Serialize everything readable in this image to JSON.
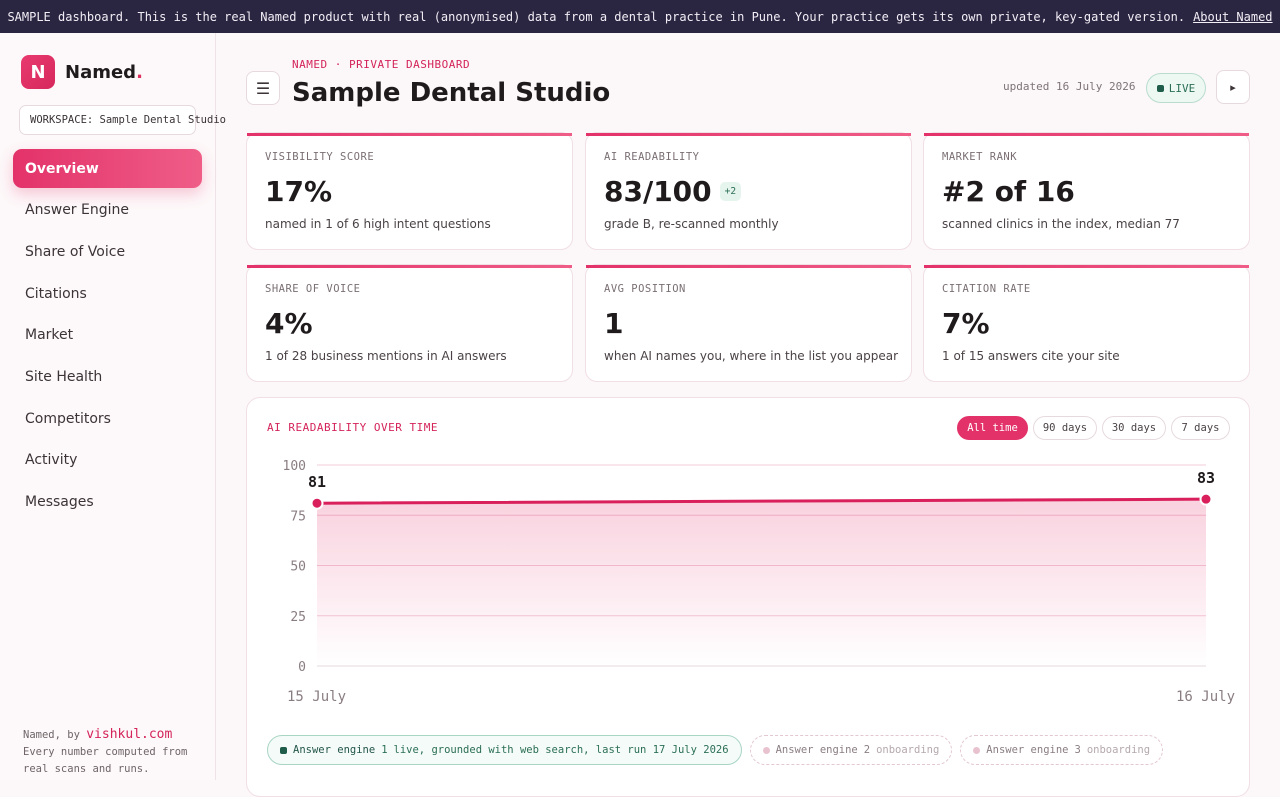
{
  "banner": {
    "text": "SAMPLE dashboard. This is the real Named product with real (anonymised) data from a dental practice in Pune. Your practice gets its own private, key-gated version.",
    "link": "About Named"
  },
  "sidebar": {
    "logo_letter": "N",
    "brand_name": "Named",
    "brand_dot": ".",
    "workspace": "WORKSPACE: Sample Dental Studio",
    "items": [
      {
        "label": "Overview",
        "active": true
      },
      {
        "label": "Answer Engine"
      },
      {
        "label": "Share of Voice"
      },
      {
        "label": "Citations"
      },
      {
        "label": "Market"
      },
      {
        "label": "Site Health"
      },
      {
        "label": "Competitors"
      },
      {
        "label": "Activity"
      },
      {
        "label": "Messages"
      }
    ],
    "footer_by": "Named, by",
    "footer_link": "vishkul.com",
    "footer_line1": "Every number computed from",
    "footer_line2": "real scans and runs."
  },
  "header": {
    "eyebrow": "NAMED · PRIVATE DASHBOARD",
    "title": "Sample Dental Studio",
    "updated": "updated 16 July 2026",
    "live": "LIVE"
  },
  "stats": [
    {
      "label": "VISIBILITY SCORE",
      "value": "17%",
      "sub": "named in 1 of 6 high intent questions"
    },
    {
      "label": "AI READABILITY",
      "value": "83/100",
      "delta": "+2",
      "sub": "grade B, re-scanned monthly"
    },
    {
      "label": "MARKET RANK",
      "value": "#2 of 16",
      "sub": "scanned clinics in the index, median 77"
    },
    {
      "label": "SHARE OF VOICE",
      "value": "4%",
      "sub": "1 of 28 business mentions in AI answers"
    },
    {
      "label": "AVG POSITION",
      "value": "1",
      "sub": "when AI names you, where in the list you appear"
    },
    {
      "label": "CITATION RATE",
      "value": "7%",
      "sub": "1 of 15 answers cite your site"
    }
  ],
  "chart_panel": {
    "title": "AI READABILITY OVER TIME",
    "ranges": [
      {
        "label": "All time",
        "active": true
      },
      {
        "label": "90 days"
      },
      {
        "label": "30 days"
      },
      {
        "label": "7 days"
      }
    ]
  },
  "chart_data": {
    "type": "area",
    "title": "AI READABILITY OVER TIME",
    "x": [
      "15 July",
      "16 July"
    ],
    "values": [
      81,
      83
    ],
    "data_labels": [
      "81",
      "83"
    ],
    "yticks": [
      0,
      25,
      50,
      75,
      100
    ],
    "ylim": [
      0,
      100
    ],
    "grid": true,
    "color": "#d91f5c"
  },
  "engines": [
    {
      "name": "Answer engine",
      "num": "1",
      "status": "live, grounded with web search, last run 17 July 2026",
      "live": true
    },
    {
      "name": "Answer engine",
      "num": "2",
      "status": "onboarding",
      "live": false
    },
    {
      "name": "Answer engine",
      "num": "3",
      "status": "onboarding",
      "live": false
    }
  ]
}
